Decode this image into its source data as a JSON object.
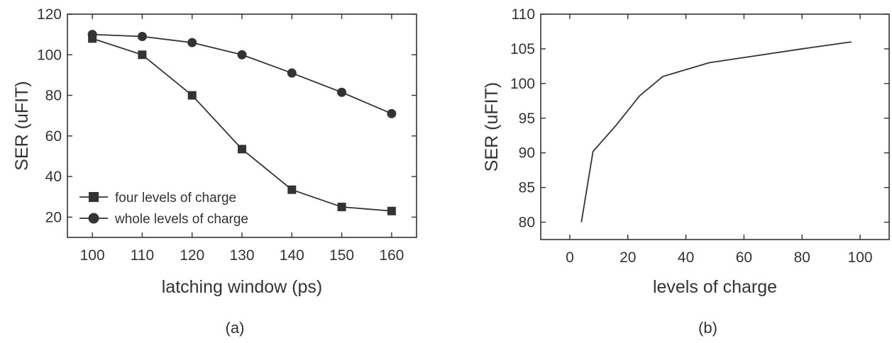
{
  "chart_data": [
    {
      "type": "line",
      "caption": "(a)",
      "xlabel": "latching window (ps)",
      "ylabel": "SER (uFIT)",
      "xlim": [
        95,
        165
      ],
      "ylim": [
        10,
        120
      ],
      "xticks": [
        100,
        110,
        120,
        130,
        140,
        150,
        160
      ],
      "yticks": [
        20,
        40,
        60,
        80,
        100,
        120
      ],
      "grid": false,
      "legend": "bottom-left",
      "series": [
        {
          "name": "four levels of charge",
          "marker": "square",
          "x": [
            100,
            110,
            120,
            130,
            140,
            150,
            160
          ],
          "y": [
            108,
            100,
            80,
            53.5,
            33.5,
            25,
            23
          ]
        },
        {
          "name": "whole levels of charge",
          "marker": "circle",
          "x": [
            100,
            110,
            120,
            130,
            140,
            150,
            160
          ],
          "y": [
            110,
            109,
            106,
            100,
            91,
            81.5,
            71
          ]
        }
      ]
    },
    {
      "type": "line",
      "caption": "(b)",
      "xlabel": "levels of charge",
      "ylabel": "SER (uFIT)",
      "xlim": [
        -10,
        110
      ],
      "ylim": [
        77.5,
        110
      ],
      "xticks": [
        0,
        20,
        40,
        60,
        80,
        100
      ],
      "yticks": [
        80,
        85,
        90,
        95,
        100,
        105,
        110
      ],
      "grid": false,
      "legend": "none",
      "series": [
        {
          "marker": "none",
          "x": [
            4,
            8,
            16,
            24,
            32,
            40,
            48,
            64,
            80,
            97
          ],
          "y": [
            80,
            90.2,
            94,
            98.2,
            101,
            102,
            103,
            104,
            105,
            106
          ]
        }
      ]
    }
  ]
}
